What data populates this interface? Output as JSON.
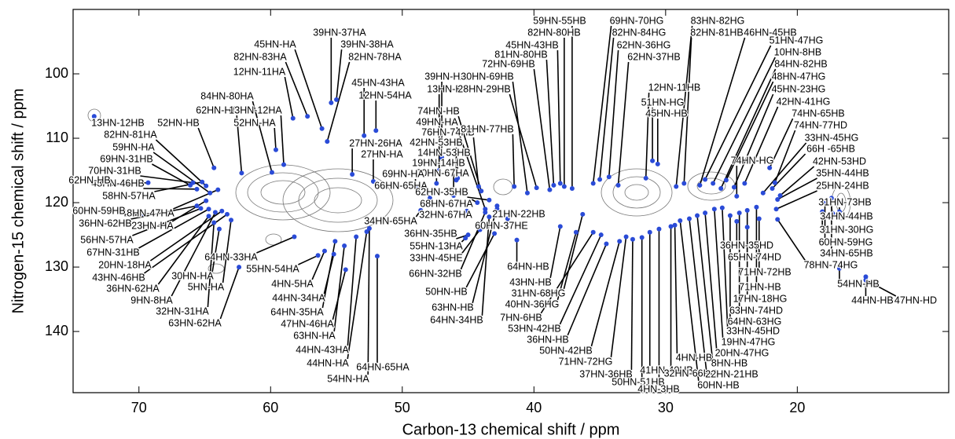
{
  "chart_data": {
    "type": "scatter",
    "xlabel": "Carbon-13 chemical shift / ppm",
    "ylabel": "Nitrogen-15 chemical shift / ppm",
    "xlim": [
      75,
      8.5
    ],
    "ylim": [
      149.5,
      90
    ],
    "xticks": [
      70,
      60,
      50,
      40,
      30,
      20
    ],
    "yticks": [
      100,
      110,
      120,
      130,
      140
    ],
    "marker_color": "#2a4bd7",
    "annotations": [
      {
        "text": "13HN-12HB",
        "x": 73.4,
        "y": 106.6
      },
      {
        "text": "52HN-HB",
        "x": 64.3,
        "y": 114.6
      },
      {
        "text": "62HN-HA",
        "x": 62.2,
        "y": 115.4
      },
      {
        "text": "82HN-81HA",
        "x": 64.9,
        "y": 117.4
      },
      {
        "text": "59HN-HA",
        "x": 64.6,
        "y": 118.5
      },
      {
        "text": "69HN-31HB",
        "x": 66.1,
        "y": 117.3
      },
      {
        "text": "70HN-31HB",
        "x": 65.9,
        "y": 116.9
      },
      {
        "text": "48HN-46HB",
        "x": 65.6,
        "y": 117.9
      },
      {
        "text": "58HN-57HA",
        "x": 65.2,
        "y": 116.8
      },
      {
        "text": "62HN-HB",
        "x": 69.3,
        "y": 116.9
      },
      {
        "text": "48HN-47HA",
        "x": 64.0,
        "y": 118.0
      },
      {
        "text": "23HN-HA",
        "x": 64.9,
        "y": 119.7
      },
      {
        "text": "60HN-59HB",
        "x": 69.6,
        "y": 121.8
      },
      {
        "text": "36HN-62HB",
        "x": 65.6,
        "y": 120.5
      },
      {
        "text": "56HN-57HA",
        "x": 65.3,
        "y": 120.9
      },
      {
        "text": "67HN-31HB",
        "x": 64.7,
        "y": 121.0
      },
      {
        "text": "20HN-18HA",
        "x": 63.7,
        "y": 121.3
      },
      {
        "text": "43HN-46HB",
        "x": 63.3,
        "y": 121.8
      },
      {
        "text": "36HN-62HA",
        "x": 64.7,
        "y": 122.1
      },
      {
        "text": "9HN-8HA",
        "x": 64.2,
        "y": 121.5
      },
      {
        "text": "32HN-31HA",
        "x": 64.3,
        "y": 123.1
      },
      {
        "text": "63HN-62HA",
        "x": 62.4,
        "y": 130.0
      },
      {
        "text": "30HN-HA",
        "x": 63.9,
        "y": 124.1
      },
      {
        "text": "5HN-HA",
        "x": 63.0,
        "y": 122.7
      },
      {
        "text": "84HN-80HA",
        "x": 59.9,
        "y": 115.3
      },
      {
        "text": "13HN-12HA",
        "x": 59.0,
        "y": 114.1
      },
      {
        "text": "52HN-HA",
        "x": 59.6,
        "y": 111.8
      },
      {
        "text": "12HN-11HA",
        "x": 58.3,
        "y": 106.9
      },
      {
        "text": "82HN-83HA",
        "x": 57.2,
        "y": 106.6
      },
      {
        "text": "45HN-HA",
        "x": 56.1,
        "y": 108.5
      },
      {
        "text": "39HN-37HA",
        "x": 55.4,
        "y": 104.5
      },
      {
        "text": "39HN-38HA",
        "x": 55.0,
        "y": 104.0
      },
      {
        "text": "82HN-78HA",
        "x": 55.7,
        "y": 110.5
      },
      {
        "text": "45HN-43HA",
        "x": 52.9,
        "y": 109.6
      },
      {
        "text": "12HN-54HA",
        "x": 52.0,
        "y": 108.8
      },
      {
        "text": "27HN-26HA",
        "x": 53.8,
        "y": 115.6
      },
      {
        "text": "27HN-HA",
        "x": 52.2,
        "y": 116.7
      },
      {
        "text": "64HN-33HA",
        "x": 58.2,
        "y": 125.3
      },
      {
        "text": "55HN-54HA",
        "x": 56.4,
        "y": 128.2
      },
      {
        "text": "4HN-5HA",
        "x": 55.9,
        "y": 127.5
      },
      {
        "text": "44HN-34HA",
        "x": 55.2,
        "y": 128.0
      },
      {
        "text": "64HN-35HA",
        "x": 55.1,
        "y": 126.0
      },
      {
        "text": "47HN-46HA",
        "x": 54.3,
        "y": 130.4
      },
      {
        "text": "63HN-HA",
        "x": 54.4,
        "y": 126.7
      },
      {
        "text": "44HN-43HA",
        "x": 53.5,
        "y": 125.3
      },
      {
        "text": "44HN-HA",
        "x": 52.7,
        "y": 124.5
      },
      {
        "text": "64HN-65HA",
        "x": 51.9,
        "y": 128.3
      },
      {
        "text": "54HN-HA",
        "x": 52.5,
        "y": 124.0
      },
      {
        "text": "39HN-HA",
        "x": 47.0,
        "y": 113.0
      },
      {
        "text": "13HN-HA",
        "x": 47.2,
        "y": 115.0
      },
      {
        "text": "74HN-HB",
        "x": 44.0,
        "y": 118.2
      },
      {
        "text": "49HN-HA",
        "x": 43.7,
        "y": 121.0
      },
      {
        "text": "76HN-74HB",
        "x": 44.2,
        "y": 117.5
      },
      {
        "text": "42HN-53HB",
        "x": 45.9,
        "y": 116.5
      },
      {
        "text": "14HN-53HB",
        "x": 45.8,
        "y": 116.2
      },
      {
        "text": "19HN-14HB",
        "x": 46.1,
        "y": 118.9
      },
      {
        "text": "70HN-67HA",
        "x": 47.4,
        "y": 117.0
      },
      {
        "text": "69HN-HA",
        "x": 49.0,
        "y": 117.5
      },
      {
        "text": "66HN-65HA",
        "x": 47.9,
        "y": 119.3
      },
      {
        "text": "62HN-35HB",
        "x": 43.4,
        "y": 119.6
      },
      {
        "text": "68HN-67HA",
        "x": 44.3,
        "y": 120.0
      },
      {
        "text": "32HN-67HA",
        "x": 45.1,
        "y": 121.3
      },
      {
        "text": "34HN-65HA",
        "x": 48.6,
        "y": 121.2
      },
      {
        "text": "36HN-35HB",
        "x": 45.0,
        "y": 125.0
      },
      {
        "text": "55HN-13HA",
        "x": 45.2,
        "y": 125.5
      },
      {
        "text": "33HN-45HE",
        "x": 44.1,
        "y": 124.2
      },
      {
        "text": "66HN-32HB",
        "x": 43.7,
        "y": 121.5
      },
      {
        "text": "50HN-HB",
        "x": 43.0,
        "y": 124.8
      },
      {
        "text": "63HN-HB",
        "x": 42.8,
        "y": 120.5
      },
      {
        "text": "64HN-34HB",
        "x": 43.4,
        "y": 122.2
      },
      {
        "text": "81HN-77HB",
        "x": 41.5,
        "y": 117.5
      },
      {
        "text": "30HN-69HB",
        "x": 40.5,
        "y": 118.5
      },
      {
        "text": "28HN-29HB",
        "x": 39.8,
        "y": 117.7
      },
      {
        "text": "72HN-69HB",
        "x": 38.8,
        "y": 118.0
      },
      {
        "text": "81HN-80HB",
        "x": 38.5,
        "y": 117.3
      },
      {
        "text": "45HN-43HB",
        "x": 38.0,
        "y": 117.0
      },
      {
        "text": "82HN-80HB",
        "x": 37.7,
        "y": 117.5
      },
      {
        "text": "59HN-55HB",
        "x": 37.1,
        "y": 117.8
      },
      {
        "text": "21HN-22HB",
        "x": 42.8,
        "y": 121.0
      },
      {
        "text": "60HN-37HE",
        "x": 42.0,
        "y": 122.5
      },
      {
        "text": "64HN-HB",
        "x": 41.3,
        "y": 125.8
      },
      {
        "text": "43HN-HB",
        "x": 38.0,
        "y": 123.7
      },
      {
        "text": "31HN-68HG",
        "x": 36.3,
        "y": 121.8
      },
      {
        "text": "40HN-36HG",
        "x": 36.8,
        "y": 124.6
      },
      {
        "text": "7HN-6HB",
        "x": 35.5,
        "y": 124.6
      },
      {
        "text": "53HN-42HB",
        "x": 34.9,
        "y": 125.0
      },
      {
        "text": "36HN-HB",
        "x": 34.5,
        "y": 126.4
      },
      {
        "text": "50HN-42HB",
        "x": 33.5,
        "y": 126.0
      },
      {
        "text": "71HN-72HG",
        "x": 33.0,
        "y": 125.3
      },
      {
        "text": "37HN-36HB",
        "x": 32.5,
        "y": 125.7
      },
      {
        "text": "50HN-51HB",
        "x": 31.8,
        "y": 125.4
      },
      {
        "text": "41HN-40HB",
        "x": 31.2,
        "y": 124.6
      },
      {
        "text": "4HN-3HB",
        "x": 30.5,
        "y": 124.1
      },
      {
        "text": "32HN-66HG",
        "x": 29.6,
        "y": 123.7
      },
      {
        "text": "4HN-HB",
        "x": 29.3,
        "y": 123.5
      },
      {
        "text": "60HN-HB",
        "x": 28.9,
        "y": 122.8
      },
      {
        "text": "22HN-21HB",
        "x": 28.2,
        "y": 122.5
      },
      {
        "text": "8HN-HB",
        "x": 27.6,
        "y": 122.0
      },
      {
        "text": "20HN-47HG",
        "x": 27.0,
        "y": 121.6
      },
      {
        "text": "19HN-47HG",
        "x": 26.3,
        "y": 121.0
      },
      {
        "text": "33HN-45HD",
        "x": 25.7,
        "y": 120.8
      },
      {
        "text": "64HN-63HG",
        "x": 25.1,
        "y": 122.0
      },
      {
        "text": "63HN-74HD",
        "x": 24.4,
        "y": 121.6
      },
      {
        "text": "17HN-18HG",
        "x": 23.8,
        "y": 121.2
      },
      {
        "text": "71HN-HB",
        "x": 23.1,
        "y": 120.7
      },
      {
        "text": "71HN-72HB",
        "x": 22.9,
        "y": 122.5
      },
      {
        "text": "65HN-74HD",
        "x": 23.8,
        "y": 123.8
      },
      {
        "text": "36HN-35HD",
        "x": 24.6,
        "y": 122.9
      },
      {
        "text": "69HN-70HG",
        "x": 35.5,
        "y": 117.0
      },
      {
        "text": "82HN-84HG",
        "x": 35.0,
        "y": 116.4
      },
      {
        "text": "62HN-36HG",
        "x": 34.3,
        "y": 116.0
      },
      {
        "text": "62HN-37HB",
        "x": 33.6,
        "y": 117.3
      },
      {
        "text": "12HN-11HB",
        "x": 31.5,
        "y": 116.2
      },
      {
        "text": "51HN-HG",
        "x": 31.0,
        "y": 113.5
      },
      {
        "text": "45HN-HB",
        "x": 30.6,
        "y": 114.0
      },
      {
        "text": "83HN-82HG",
        "x": 29.2,
        "y": 117.5
      },
      {
        "text": "82HN-81HB",
        "x": 28.6,
        "y": 117.0
      },
      {
        "text": "46HN-45HB",
        "x": 27.4,
        "y": 117.3
      },
      {
        "text": "51HN-47HG",
        "x": 27.0,
        "y": 116.4
      },
      {
        "text": "10HN-8HB",
        "x": 26.4,
        "y": 117.0
      },
      {
        "text": "84HN-82HB",
        "x": 25.8,
        "y": 117.8
      },
      {
        "text": "48HN-47HG",
        "x": 25.4,
        "y": 116.5
      },
      {
        "text": "45HN-23HG",
        "x": 24.8,
        "y": 117.6
      },
      {
        "text": "42HN-41HG",
        "x": 24.0,
        "y": 117.0
      },
      {
        "text": "74HN-65HB",
        "x": 22.1,
        "y": 114.6
      },
      {
        "text": "74HN-77HD",
        "x": 21.7,
        "y": 116.9
      },
      {
        "text": "33HN-45HG",
        "x": 22.6,
        "y": 118.5
      },
      {
        "text": "66H -65HB",
        "x": 21.9,
        "y": 117.8
      },
      {
        "text": "42HN-53HD",
        "x": 21.3,
        "y": 118.9
      },
      {
        "text": "35HN-44HB",
        "x": 21.5,
        "y": 119.5
      },
      {
        "text": "25HN-24HB",
        "x": 21.6,
        "y": 121.0
      },
      {
        "text": "74HN-HG",
        "x": 24.6,
        "y": 119.0
      },
      {
        "text": "31HN-73HB",
        "x": 16.8,
        "y": 121.4
      },
      {
        "text": "34HN-44HB",
        "x": 17.3,
        "y": 121.7
      },
      {
        "text": "31HN-30HG",
        "x": 18.1,
        "y": 121.4
      },
      {
        "text": "60HN-59HG",
        "x": 17.9,
        "y": 120.1
      },
      {
        "text": "34HN-65HB",
        "x": 17.4,
        "y": 119.3
      },
      {
        "text": "78HN-74HG",
        "x": 21.5,
        "y": 122.6
      },
      {
        "text": "54HN-HB",
        "x": 16.8,
        "y": 130.2
      },
      {
        "text": "44HN-HB",
        "x": 14.8,
        "y": 131.5
      },
      {
        "text": "47HN-HD",
        "x": 14.8,
        "y": 132.0
      }
    ]
  }
}
